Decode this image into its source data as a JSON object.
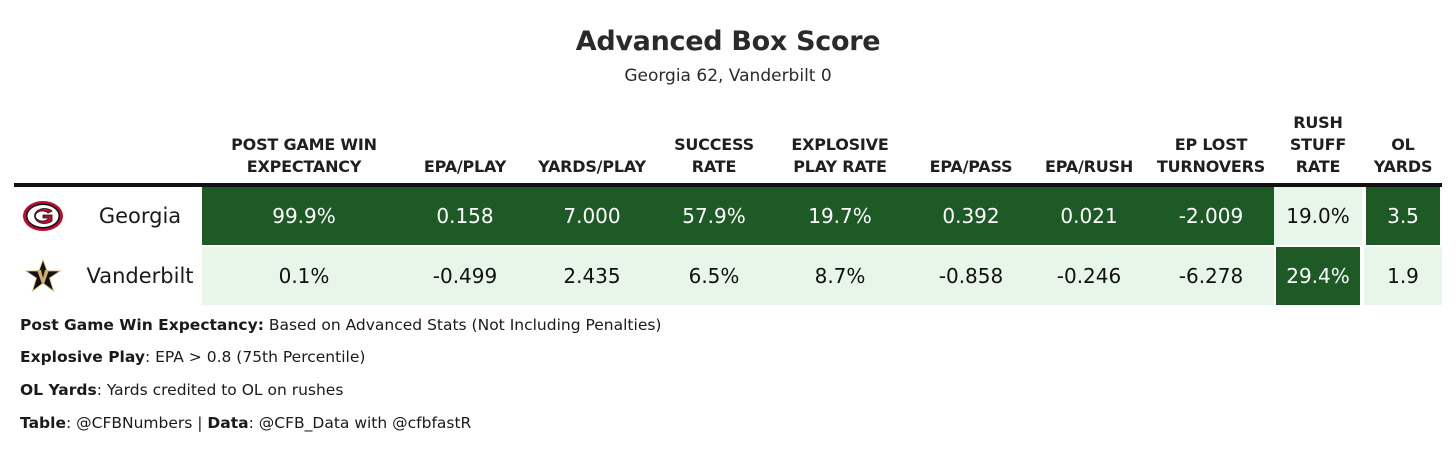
{
  "title": "Advanced Box Score",
  "subtitle": "Georgia 62, Vanderbilt 0",
  "chart_data": {
    "type": "table",
    "title": "Advanced Box Score",
    "subtitle": "Georgia 62, Vanderbilt 0",
    "columns": [
      {
        "key": "win_exp",
        "label_lines": [
          "POST GAME WIN",
          "EXPECTANCY"
        ]
      },
      {
        "key": "epa_play",
        "label_lines": [
          "EPA/PLAY"
        ]
      },
      {
        "key": "yards_play",
        "label_lines": [
          "YARDS/PLAY"
        ]
      },
      {
        "key": "success_rate",
        "label_lines": [
          "SUCCESS",
          "RATE"
        ]
      },
      {
        "key": "explosive",
        "label_lines": [
          "EXPLOSIVE",
          "PLAY RATE"
        ]
      },
      {
        "key": "epa_pass",
        "label_lines": [
          "EPA/PASS"
        ]
      },
      {
        "key": "epa_rush",
        "label_lines": [
          "EPA/RUSH"
        ]
      },
      {
        "key": "ep_lost",
        "label_lines": [
          "EP LOST",
          "TURNOVERS"
        ]
      },
      {
        "key": "stuff_rate",
        "label_lines": [
          "RUSH",
          "STUFF",
          "RATE"
        ]
      },
      {
        "key": "ol_yards",
        "label_lines": [
          "OL",
          "YARDS"
        ]
      }
    ],
    "rows": [
      {
        "team": "Georgia",
        "logo_icon": "georgia-g-logo-icon",
        "values": [
          "99.9%",
          "0.158",
          "7.000",
          "57.9%",
          "19.7%",
          "0.392",
          "0.021",
          "-2.009",
          "19.0%",
          "3.5"
        ],
        "shading": [
          "dark",
          "dark",
          "dark",
          "dark",
          "dark",
          "dark",
          "dark",
          "dark",
          "light",
          "dark"
        ]
      },
      {
        "team": "Vanderbilt",
        "logo_icon": "vanderbilt-v-star-logo-icon",
        "values": [
          "0.1%",
          "-0.499",
          "2.435",
          "6.5%",
          "8.7%",
          "-0.858",
          "-0.246",
          "-6.278",
          "29.4%",
          "1.9"
        ],
        "shading": [
          "light",
          "light",
          "light",
          "light",
          "light",
          "light",
          "light",
          "light",
          "dark",
          "light"
        ]
      }
    ],
    "colors": {
      "dark": "#1e5a25",
      "light": "#e8f5e9",
      "rule": "#111111",
      "logo_red": "#ba0c2f",
      "logo_gold": "#cfae70"
    }
  },
  "notes": [
    {
      "bold": "Post Game Win Expectancy:",
      "text": " Based on Advanced Stats (Not Including Penalties)"
    },
    {
      "bold": "Explosive Play",
      "text": ": EPA > 0.8 (75th Percentile)"
    },
    {
      "bold": "OL Yards",
      "text": ": Yards credited to OL on rushes"
    }
  ],
  "credits": {
    "table_label": "Table",
    "table_value": ": @CFBNumbers | ",
    "data_label": "Data",
    "data_value": ": @CFB_Data with @cfbfastR"
  }
}
